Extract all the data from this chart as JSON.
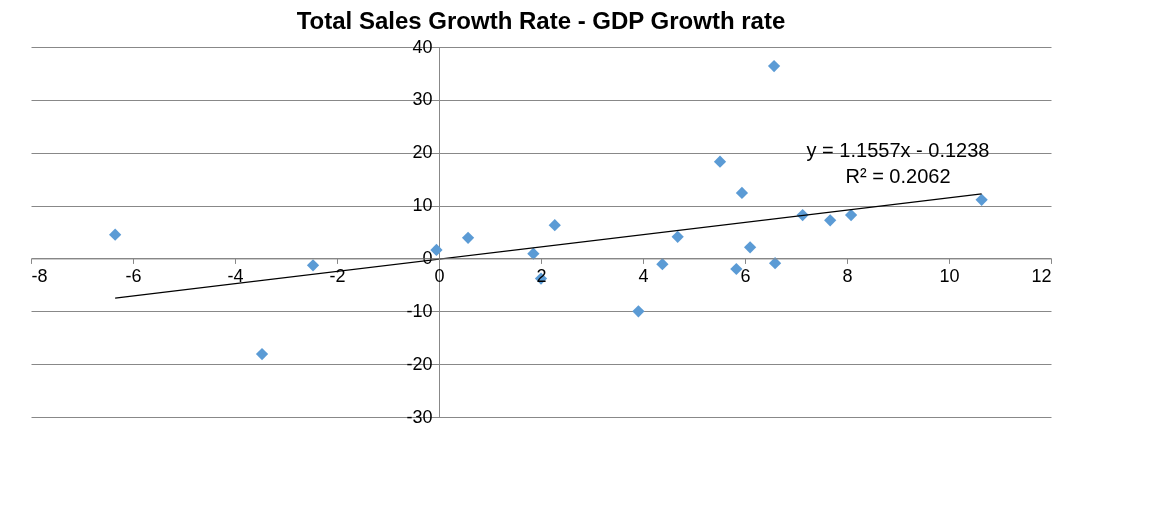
{
  "chart_data": {
    "type": "scatter",
    "title": "Total Sales Growth Rate - GDP Growth rate",
    "series": [
      {
        "color": "#5b9bd5",
        "marker": "diamond",
        "x": [
          -6.35,
          -3.47,
          -2.47,
          -0.05,
          0.57,
          1.85,
          2.0,
          2.27,
          3.91,
          4.38,
          4.68,
          5.51,
          5.83,
          5.94,
          6.1,
          6.57,
          6.59,
          7.13,
          7.67,
          8.08,
          10.64
        ],
        "values": [
          4.5,
          -18.1,
          -1.3,
          1.6,
          3.9,
          0.9,
          -3.8,
          6.3,
          -10.0,
          -1.1,
          4.1,
          18.3,
          -2.0,
          12.4,
          2.1,
          36.4,
          -0.9,
          8.2,
          7.2,
          8.2,
          11.1
        ]
      },
      {
        "type": "line",
        "color": "#000000",
        "marker": "none",
        "line_style": "solid",
        "x": [
          -6.35,
          10.64
        ],
        "values": [
          -7.5,
          12.2
        ]
      }
    ],
    "annotations": [
      "y = 1.1557x - 0.1238",
      "R² = 0.2062"
    ],
    "xlim": [
      -8,
      12
    ],
    "xticks": [
      -8,
      -6,
      -4,
      -2,
      0,
      2,
      4,
      6,
      8,
      10,
      12
    ],
    "ylim": [
      -30,
      40
    ],
    "yticks": [
      -30,
      -20,
      -10,
      0,
      10,
      20,
      30,
      40
    ],
    "grid": "y"
  }
}
